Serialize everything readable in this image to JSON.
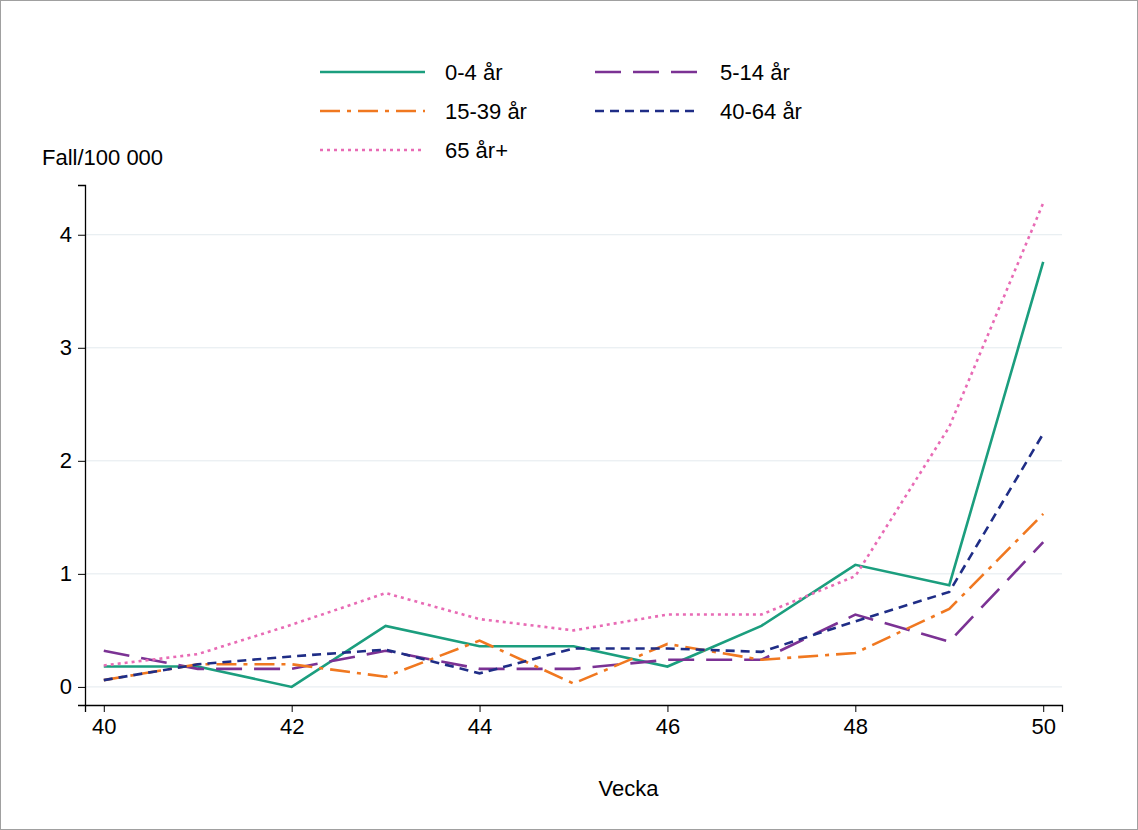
{
  "chart_data": {
    "type": "line",
    "y_label": "Fall/100 000",
    "x_label": "Vecka",
    "x": [
      40,
      41,
      42,
      43,
      44,
      45,
      46,
      47,
      48,
      49,
      50
    ],
    "xlim": [
      39.8,
      50.2
    ],
    "xticks": [
      40,
      42,
      44,
      46,
      48,
      50
    ],
    "ylim": [
      -0.16,
      4.44
    ],
    "yticks": [
      0,
      1,
      2,
      3,
      4
    ],
    "grid": true,
    "legend": "top",
    "series": [
      {
        "name": "0-4 år",
        "color": "#1b9e7e",
        "line_style": "solid",
        "values": [
          0.18,
          0.18,
          0.0,
          0.54,
          0.36,
          0.36,
          0.18,
          0.54,
          1.08,
          0.9,
          3.76
        ]
      },
      {
        "name": "5-14 år",
        "color": "#7b3294",
        "line_style": "longdash",
        "values": [
          0.32,
          0.16,
          0.16,
          0.32,
          0.16,
          0.16,
          0.24,
          0.24,
          0.64,
          0.4,
          1.28
        ]
      },
      {
        "name": "15-39 år",
        "color": "#f07820",
        "line_style": "dashdot",
        "values": [
          0.06,
          0.2,
          0.2,
          0.09,
          0.41,
          0.03,
          0.38,
          0.24,
          0.3,
          0.69,
          1.53
        ]
      },
      {
        "name": "40-64 år",
        "color": "#1f2d86",
        "line_style": "dash",
        "values": [
          0.06,
          0.2,
          0.27,
          0.33,
          0.12,
          0.34,
          0.34,
          0.31,
          0.58,
          0.84,
          2.24
        ]
      },
      {
        "name": "65 år+",
        "color": "#e86bb5",
        "line_style": "dot",
        "values": [
          0.19,
          0.29,
          0.55,
          0.83,
          0.6,
          0.5,
          0.64,
          0.64,
          0.98,
          2.3,
          4.28
        ]
      }
    ]
  }
}
